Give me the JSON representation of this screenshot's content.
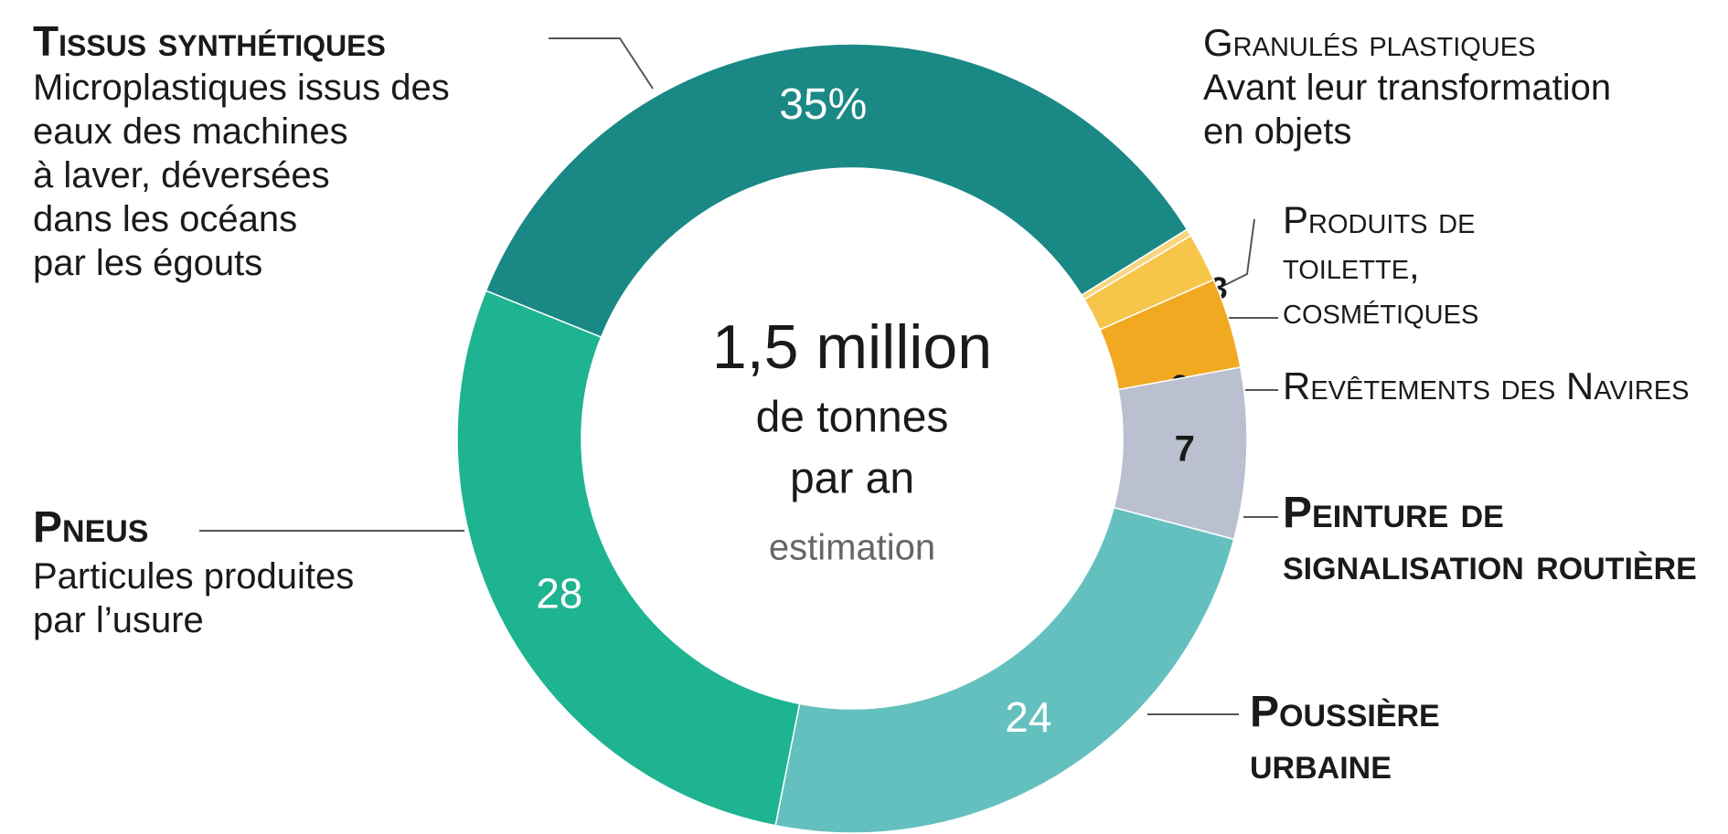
{
  "chart_data": {
    "type": "pie",
    "donut": true,
    "categories": [
      "Tissus synthétiques",
      "Granulés plastiques",
      "Produits de toilette, cosmétiques",
      "Revêtements des Navires",
      "Peinture de signalisation routière",
      "Poussière urbaine",
      "Pneus"
    ],
    "descriptions": [
      [
        "Microplastiques issus des",
        "eaux des machines",
        "à laver, déversées",
        "dans les océans",
        "par les égouts"
      ],
      [
        "Avant leur transformation",
        "en objets"
      ],
      [],
      [],
      [],
      [],
      [
        "Particules produites",
        "par l’usure"
      ]
    ],
    "values": [
      35,
      0.3,
      2,
      3.7,
      7,
      24,
      28
    ],
    "value_labels": [
      "35%",
      "0,3",
      "2",
      "3,7",
      "7",
      "24",
      "28"
    ],
    "colors": [
      "#1a8985",
      "#f6d680",
      "#f7c54a",
      "#f2a922",
      "#bac0d0",
      "#64c0be",
      "#1eb391"
    ],
    "center_text": [
      "1,5 million",
      "de tonnes",
      "par an"
    ],
    "center_note": "estimation"
  }
}
